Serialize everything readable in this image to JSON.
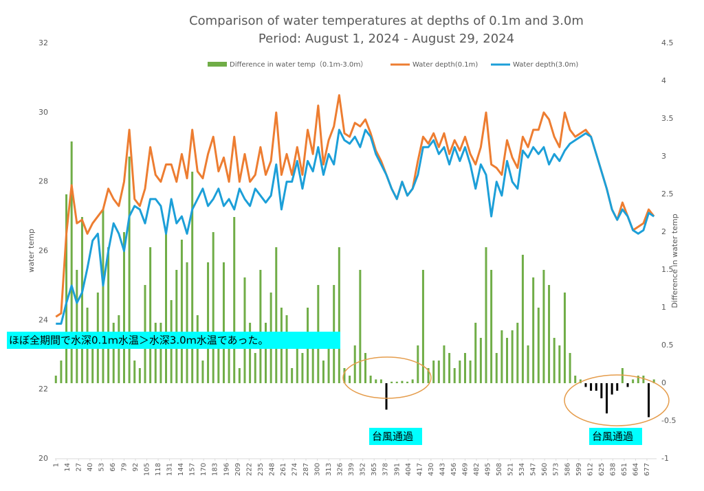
{
  "chart_data": {
    "type": "bar-line",
    "title": "Comparison of water temperatures at depths of 0.1m and 3.0m",
    "subtitle": "Period: August 1, 2024 - August 29, 2024",
    "y_label": "water temp",
    "y2_label": "Difference in water temp",
    "annotations": [
      "ほぼ全期間で水深0.1ｍ水温＞水深3.0ｍ水温であった。",
      "台風通過",
      "台風通過"
    ],
    "x": [
      1,
      7,
      13,
      19,
      25,
      31,
      37,
      43,
      49,
      55,
      61,
      67,
      73,
      79,
      85,
      91,
      97,
      103,
      109,
      115,
      121,
      127,
      133,
      139,
      145,
      151,
      157,
      163,
      169,
      175,
      181,
      187,
      193,
      199,
      205,
      211,
      217,
      223,
      229,
      235,
      241,
      247,
      253,
      259,
      265,
      271,
      277,
      283,
      289,
      295,
      301,
      307,
      313,
      319,
      325,
      331,
      337,
      343,
      349,
      355,
      361,
      367,
      373,
      379,
      385,
      391,
      397,
      403,
      409,
      415,
      421,
      427,
      433,
      439,
      445,
      451,
      457,
      463,
      469,
      475,
      481,
      487,
      493,
      499,
      505,
      511,
      517,
      523,
      529,
      535,
      541,
      547,
      553,
      559,
      565,
      571,
      577,
      583,
      589,
      595,
      601,
      607,
      613,
      619,
      625,
      631,
      637,
      643,
      649,
      655,
      661,
      667,
      673,
      679,
      685
    ],
    "xlim": [
      0,
      688
    ],
    "xticks": [
      1,
      14,
      27,
      40,
      53,
      66,
      79,
      92,
      105,
      118,
      131,
      144,
      157,
      170,
      183,
      196,
      209,
      222,
      235,
      248,
      261,
      274,
      287,
      300,
      313,
      326,
      339,
      352,
      365,
      378,
      391,
      404,
      417,
      430,
      443,
      456,
      469,
      482,
      495,
      508,
      521,
      534,
      547,
      560,
      573,
      586,
      599,
      612,
      625,
      638,
      651,
      664,
      677
    ],
    "ylim": [
      20,
      32
    ],
    "yticks": [
      20,
      22,
      24,
      26,
      28,
      30,
      32
    ],
    "y2lim": [
      -1,
      4.5
    ],
    "y2ticks": [
      -1,
      -0.5,
      0,
      0.5,
      1,
      1.5,
      2,
      2.5,
      3,
      3.5,
      4,
      4.5
    ],
    "negative_color": "#000000",
    "series": [
      {
        "name": "Difference in water temp（0.1ｍ-3.0ｍ）",
        "kind": "bar",
        "axis": "y2",
        "color": "#70ad47",
        "values": [
          0.1,
          0.3,
          2.5,
          3.2,
          1.5,
          2.2,
          1.0,
          0.5,
          1.2,
          2.3,
          1.8,
          0.8,
          0.9,
          2.0,
          3.0,
          0.3,
          0.2,
          1.3,
          1.8,
          0.8,
          0.8,
          2.0,
          1.1,
          1.5,
          1.9,
          1.6,
          2.8,
          0.9,
          0.3,
          1.6,
          2.0,
          0.6,
          1.6,
          0.5,
          2.2,
          0.2,
          1.4,
          0.8,
          0.4,
          1.5,
          0.8,
          1.2,
          1.8,
          1.0,
          0.9,
          0.2,
          0.5,
          0.4,
          1.0,
          0.5,
          1.3,
          0.3,
          0.5,
          1.3,
          1.8,
          0.2,
          0.1,
          0.5,
          1.5,
          0.4,
          0.1,
          0.05,
          0.05,
          -0.35,
          0.02,
          0.02,
          0.03,
          0.02,
          0.05,
          0.5,
          1.5,
          0.2,
          0.3,
          0.3,
          0.5,
          0.4,
          0.2,
          0.3,
          0.4,
          0.3,
          0.8,
          0.6,
          1.8,
          1.5,
          0.4,
          0.7,
          0.6,
          0.7,
          0.8,
          1.7,
          0.5,
          1.4,
          1.0,
          1.5,
          1.3,
          0.6,
          0.5,
          1.2,
          0.4,
          0.1,
          0.05,
          -0.05,
          -0.1,
          -0.1,
          -0.2,
          -0.4,
          -0.15,
          -0.1,
          0.2,
          -0.05,
          0.05,
          0.1,
          0.1,
          -0.45,
          0.05
        ]
      },
      {
        "name": "Water depth(0.1m)",
        "kind": "line",
        "color": "#ed7d31",
        "values": [
          24.1,
          24.2,
          26.5,
          27.9,
          26.8,
          26.9,
          26.5,
          26.8,
          27.0,
          27.2,
          27.8,
          27.5,
          27.3,
          28.0,
          29.5,
          27.5,
          27.3,
          27.8,
          29.0,
          28.2,
          28.0,
          28.5,
          28.5,
          28.0,
          28.8,
          28.1,
          29.5,
          28.3,
          28.1,
          28.8,
          29.3,
          28.3,
          28.7,
          28.0,
          29.3,
          28.0,
          28.8,
          28.0,
          28.2,
          29.0,
          28.2,
          28.6,
          30.0,
          28.2,
          28.8,
          28.2,
          29.0,
          28.2,
          29.5,
          28.8,
          30.2,
          28.5,
          29.2,
          29.6,
          30.5,
          29.4,
          29.3,
          29.7,
          29.6,
          29.8,
          29.4,
          28.9,
          28.6,
          28.2,
          27.8,
          27.5,
          28.0,
          27.6,
          27.8,
          28.6,
          29.3,
          29.1,
          29.4,
          29.0,
          29.4,
          28.8,
          29.2,
          28.9,
          29.3,
          28.8,
          28.5,
          29.0,
          30.0,
          28.5,
          28.4,
          28.2,
          29.2,
          28.7,
          28.4,
          29.3,
          29.0,
          29.5,
          29.5,
          30.0,
          29.8,
          29.3,
          29.0,
          30.0,
          29.5,
          29.3,
          29.4,
          29.5,
          29.3,
          28.8,
          28.3,
          27.8,
          27.2,
          26.9,
          27.4,
          27.0,
          26.6,
          26.7,
          26.8,
          27.2,
          27.0
        ]
      },
      {
        "name": "Water depth(3.0m)",
        "kind": "line",
        "color": "#1c9fd8",
        "values": [
          23.9,
          23.9,
          24.5,
          25.0,
          24.5,
          24.8,
          25.5,
          26.3,
          26.5,
          25.0,
          26.0,
          26.8,
          26.5,
          26.0,
          27.0,
          27.3,
          27.2,
          26.8,
          27.5,
          27.5,
          27.3,
          26.5,
          27.5,
          26.8,
          27.0,
          26.5,
          27.2,
          27.5,
          27.8,
          27.3,
          27.5,
          27.8,
          27.3,
          27.5,
          27.2,
          27.8,
          27.5,
          27.3,
          27.8,
          27.6,
          27.4,
          27.6,
          28.5,
          27.2,
          28.0,
          28.0,
          28.6,
          27.8,
          28.6,
          28.3,
          29.0,
          28.2,
          28.8,
          28.5,
          29.5,
          29.2,
          29.1,
          29.3,
          29.0,
          29.5,
          29.3,
          28.8,
          28.5,
          28.2,
          27.8,
          27.5,
          28.0,
          27.6,
          27.8,
          28.2,
          29.0,
          29.0,
          29.2,
          28.8,
          29.0,
          28.5,
          29.0,
          28.6,
          29.0,
          28.5,
          27.8,
          28.5,
          28.2,
          27.0,
          28.0,
          27.6,
          28.6,
          28.0,
          27.8,
          28.9,
          28.7,
          29.0,
          28.8,
          29.0,
          28.5,
          28.8,
          28.6,
          28.9,
          29.1,
          29.2,
          29.3,
          29.4,
          29.3,
          28.8,
          28.3,
          27.8,
          27.2,
          26.9,
          27.2,
          27.0,
          26.6,
          26.5,
          26.6,
          27.1,
          27.0
        ]
      }
    ]
  }
}
